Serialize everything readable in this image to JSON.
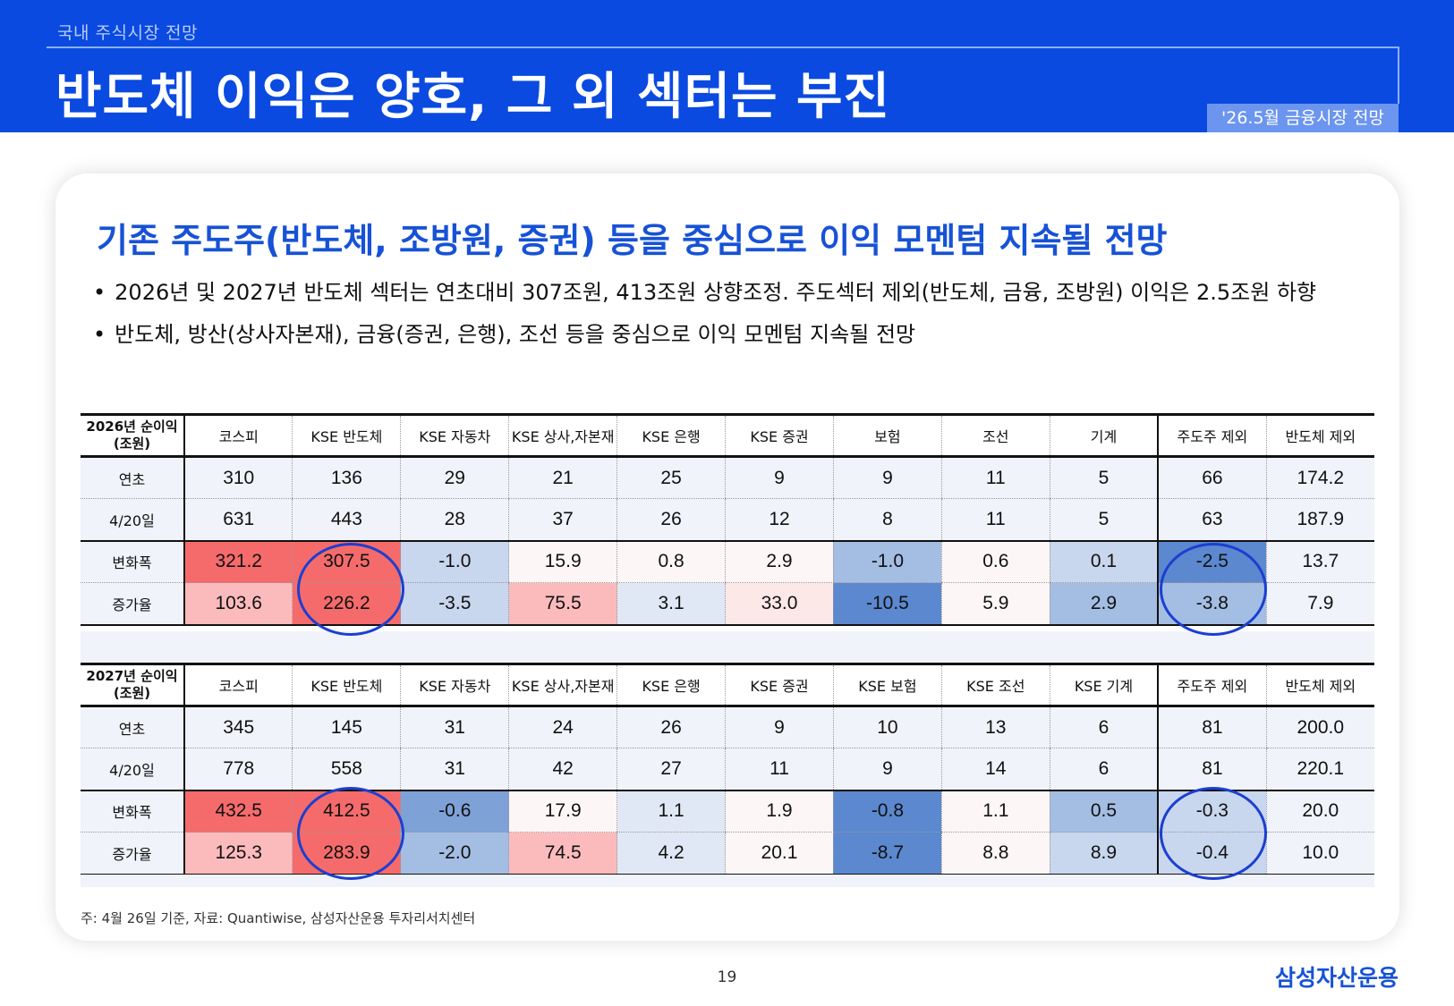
{
  "header": {
    "section": "국내 주식시장 전망",
    "title": "반도체 이익은 양호, 그 외 섹터는 부진",
    "tag": "'26.5월 금융시장 전망"
  },
  "card": {
    "headline": "기존 주도주(반도체, 조방원, 증권) 등을 중심으로 이익 모멘텀 지속될 전망",
    "bullets": [
      "2026년 및 2027년 반도체 섹터는 연초대비 307조원, 413조원 상향조정. 주도섹터 제외(반도체, 금융, 조방원) 이익은 2.5조원 하향",
      "반도체, 방산(상사자본재), 금융(증권, 은행), 조선 등을 중심으로 이익 모멘텀 지속될 전망"
    ]
  },
  "table_2026": {
    "label": [
      "2026년 순이익",
      "(조원)"
    ],
    "columns": [
      "코스피",
      "KSE 반도체",
      "KSE 자동차",
      "KSE 상사,자본재",
      "KSE 은행",
      "KSE 증권",
      "보험",
      "조선",
      "기계",
      "주도주 제외",
      "반도체 제외"
    ],
    "rows": [
      {
        "label": "연초",
        "values": [
          "310",
          "136",
          "29",
          "21",
          "25",
          "9",
          "9",
          "11",
          "5",
          "66",
          "174.2"
        ]
      },
      {
        "label": "4/20일",
        "values": [
          "631",
          "443",
          "28",
          "37",
          "26",
          "12",
          "8",
          "11",
          "5",
          "63",
          "187.9"
        ]
      },
      {
        "label": "변화폭",
        "values": [
          "321.2",
          "307.5",
          "-1.0",
          "15.9",
          "0.8",
          "2.9",
          "-1.0",
          "0.6",
          "0.1",
          "-2.5",
          "13.7"
        ]
      },
      {
        "label": "증가율",
        "values": [
          "103.6",
          "226.2",
          "-3.5",
          "75.5",
          "3.1",
          "33.0",
          "-10.5",
          "5.9",
          "2.9",
          "-3.8",
          "7.9"
        ]
      }
    ]
  },
  "table_2027": {
    "label": [
      "2027년 순이익",
      "(조원)"
    ],
    "columns": [
      "코스피",
      "KSE 반도체",
      "KSE 자동차",
      "KSE 상사,자본재",
      "KSE 은행",
      "KSE 증권",
      "KSE 보험",
      "KSE 조선",
      "KSE 기계",
      "주도주 제외",
      "반도체 제외"
    ],
    "rows": [
      {
        "label": "연초",
        "values": [
          "345",
          "145",
          "31",
          "24",
          "26",
          "9",
          "10",
          "13",
          "6",
          "81",
          "200.0"
        ]
      },
      {
        "label": "4/20일",
        "values": [
          "778",
          "558",
          "31",
          "42",
          "27",
          "11",
          "9",
          "14",
          "6",
          "81",
          "220.1"
        ]
      },
      {
        "label": "변화폭",
        "values": [
          "432.5",
          "412.5",
          "-0.6",
          "17.9",
          "1.1",
          "1.9",
          "-0.8",
          "1.1",
          "0.5",
          "-0.3",
          "20.0"
        ]
      },
      {
        "label": "증가율",
        "values": [
          "125.3",
          "283.9",
          "-2.0",
          "74.5",
          "4.2",
          "20.1",
          "-8.7",
          "8.8",
          "8.9",
          "-0.4",
          "10.0"
        ]
      }
    ]
  },
  "colors": {
    "brand_blue": "#0a4ae0",
    "headline_blue": "#1752d6",
    "positive_strong": "#f56b6b",
    "negative_strong": "#5b88cf"
  },
  "footer": {
    "note": "주: 4월 26일 기준, 자료: Quantiwise, 삼성자산운용 투자리서치센터",
    "page": "19",
    "logo": "삼성자산운용"
  }
}
